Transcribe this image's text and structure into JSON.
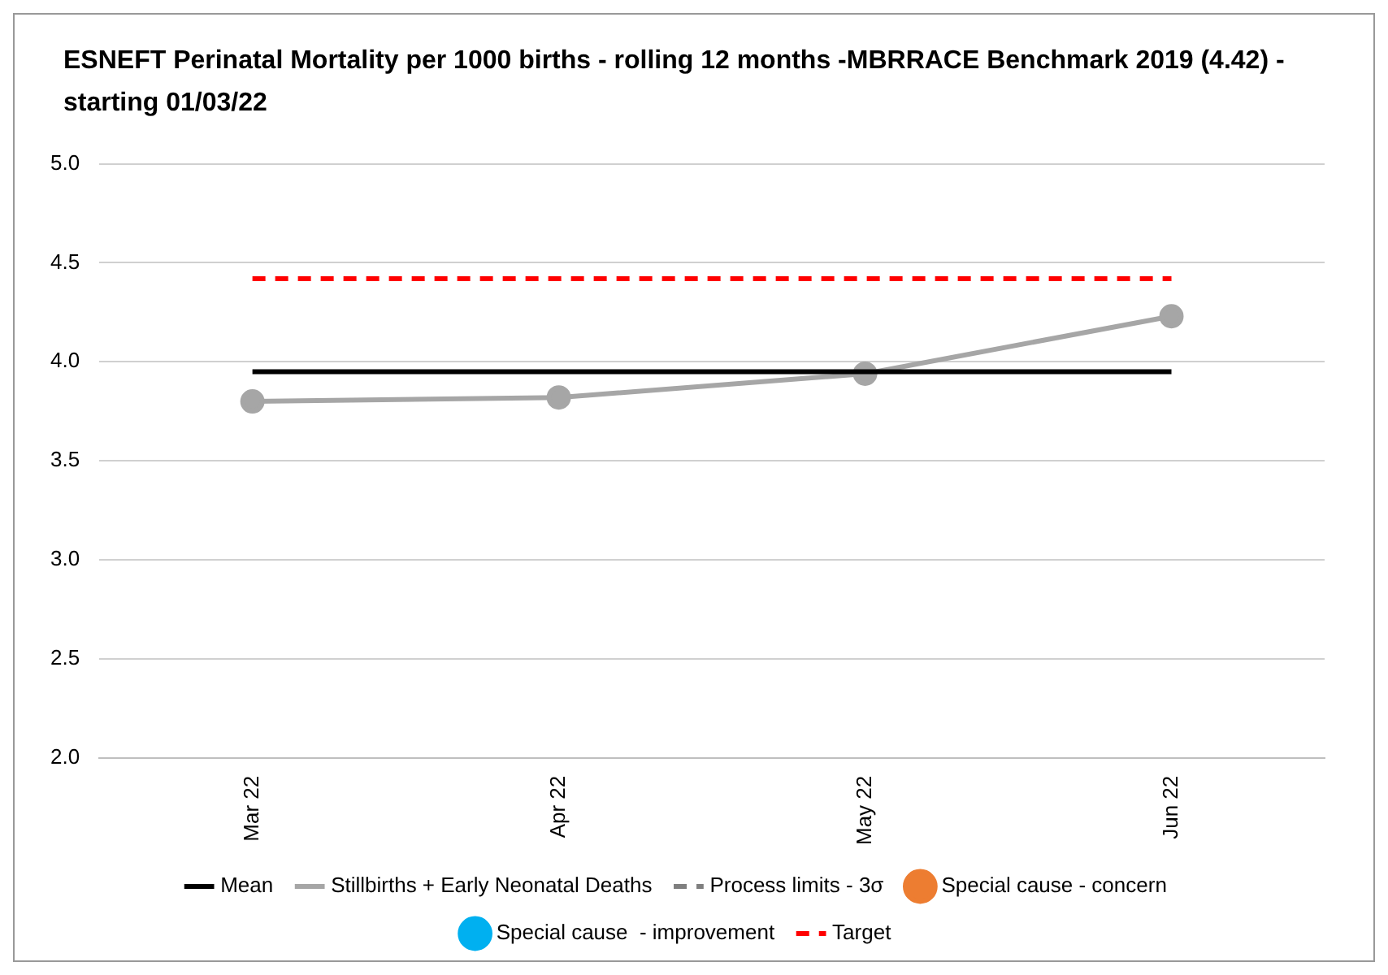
{
  "chart_data": {
    "type": "line",
    "title": "ESNEFT Perinatal Mortality per 1000 births - rolling 12 months -MBRRACE Benchmark 2019 (4.42) -  starting 01/03/22",
    "categories": [
      "Mar 22",
      "Apr 22",
      "May 22",
      "Jun 22"
    ],
    "series": [
      {
        "name": "Mean",
        "color": "#000000",
        "values": [
          3.95,
          3.95,
          3.95,
          3.95
        ],
        "marker": "none",
        "line_style": "solid"
      },
      {
        "name": "Stillbirths + Early Neonatal Deaths",
        "color": "#a6a6a6",
        "values": [
          3.8,
          3.82,
          3.94,
          4.23
        ],
        "marker": "circle",
        "line_style": "solid"
      },
      {
        "name": "Process limits - 3σ",
        "color": "#7f7f7f",
        "values": [
          null,
          null,
          null,
          null
        ],
        "marker": "none",
        "line_style": "dashed"
      },
      {
        "name": "Special cause - concern",
        "type": "scatter",
        "color": "#ed7d31",
        "values": [
          null,
          null,
          null,
          null
        ],
        "marker": "circle"
      },
      {
        "name": "Special cause  - improvement",
        "type": "scatter",
        "color": "#00b0f0",
        "values": [
          null,
          null,
          null,
          null
        ],
        "marker": "circle"
      },
      {
        "name": "Target",
        "color": "#ff0000",
        "values": [
          4.42,
          4.42,
          4.42,
          4.42
        ],
        "marker": "none",
        "line_style": "dashed"
      }
    ],
    "ylim": [
      2,
      5
    ],
    "yticks": [
      {
        "value": 2,
        "label": "2.0"
      },
      {
        "value": 2.5,
        "label": "2.5"
      },
      {
        "value": 3,
        "label": "3.0"
      },
      {
        "value": 3.5,
        "label": "3.5"
      },
      {
        "value": 4,
        "label": "4.0"
      },
      {
        "value": 4.5,
        "label": "4.5"
      },
      {
        "value": 5,
        "label": "5.0"
      }
    ],
    "grid": "y",
    "legend": "bottom"
  }
}
